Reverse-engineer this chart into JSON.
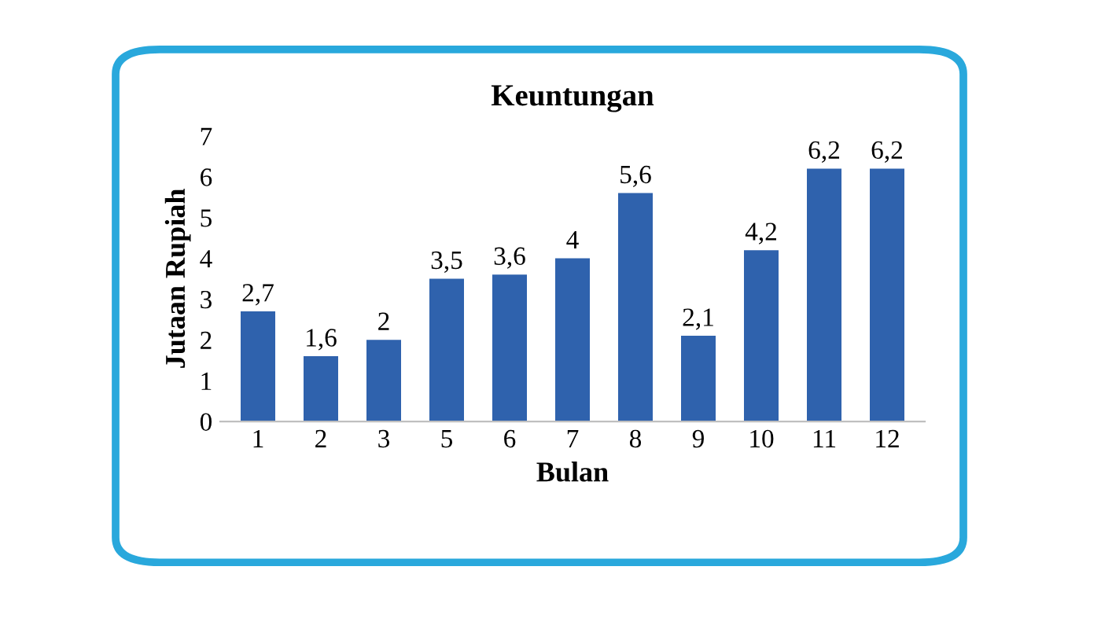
{
  "chart_data": {
    "type": "bar",
    "title": "Keuntungan",
    "xlabel": "Bulan",
    "ylabel": "Jutaan Rupiah",
    "categories": [
      "1",
      "2",
      "3",
      "5",
      "6",
      "7",
      "8",
      "9",
      "10",
      "11",
      "12"
    ],
    "values": [
      2.7,
      1.6,
      2,
      3.5,
      3.6,
      4,
      5.6,
      2.1,
      4.2,
      6.2,
      6.2
    ],
    "value_labels": [
      "2,7",
      "1,6",
      "2",
      "3,5",
      "3,6",
      "4",
      "5,6",
      "2,1",
      "4,2",
      "6,2",
      "6,2"
    ],
    "color": "#2f62ad",
    "ylim": [
      0,
      7
    ],
    "yticks": [
      0,
      1,
      2,
      3,
      4,
      5,
      6,
      7
    ],
    "grid": false,
    "legend": false
  }
}
